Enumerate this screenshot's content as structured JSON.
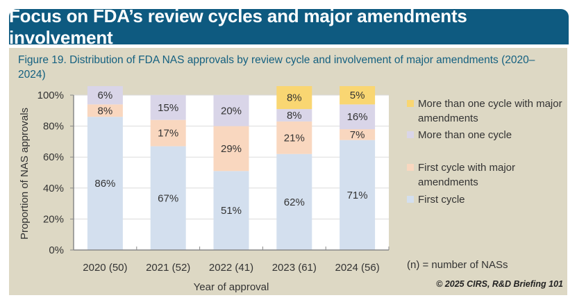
{
  "header": {
    "title": "Focus on FDA’s review cycles and major amendments involvement"
  },
  "figure": {
    "title": "Figure 19. Distribution of FDA NAS approvals by review cycle and involvement of major amendments (2020–2024)"
  },
  "colors": {
    "first_cycle": "#d3dfee",
    "first_cycle_major": "#f9d7bf",
    "more_than_one": "#d9d5e8",
    "more_than_one_major": "#f9d672",
    "panel": "#ddd8c4",
    "header": "#0e5a80"
  },
  "chart_data": {
    "type": "bar",
    "stacked": true,
    "title": "Figure 19. Distribution of FDA NAS approvals by review cycle and involvement of major amendments (2020–2024)",
    "xlabel": "Year of approval",
    "ylabel": "Proportion of NAS approvals",
    "ylim": [
      0,
      100
    ],
    "yticks": [
      "0%",
      "20%",
      "40%",
      "60%",
      "80%",
      "100%"
    ],
    "grid": true,
    "legend_position": "right",
    "categories": [
      "2020 (50)",
      "2021 (52)",
      "2022 (41)",
      "2023 (61)",
      "2024 (56)"
    ],
    "series": [
      {
        "name": "First cycle",
        "color": "#d3dfee",
        "values": [
          86,
          67,
          51,
          62,
          71
        ]
      },
      {
        "name": "First cycle with major amendments",
        "color": "#f9d7bf",
        "values": [
          8,
          17,
          29,
          21,
          7
        ]
      },
      {
        "name": "More than one cycle",
        "color": "#d9d5e8",
        "values": [
          6,
          15,
          20,
          8,
          16
        ]
      },
      {
        "name": "More than one cycle with major amendments",
        "color": "#f9d672",
        "values": [
          0,
          0,
          0,
          8,
          5
        ]
      }
    ],
    "legend": [
      {
        "label": "More than one cycle with major amendments",
        "color": "#f9d672"
      },
      {
        "label": "More than one cycle",
        "color": "#d9d5e8"
      },
      {
        "label": "First cycle with major amendments",
        "color": "#f9d7bf"
      },
      {
        "label": "First cycle",
        "color": "#d3dfee"
      }
    ],
    "annotations": [
      "(n) = number of NASs"
    ]
  },
  "note": "(n) = number of NASs",
  "credit": "© 2025 CIRS, R&D Briefing 101"
}
